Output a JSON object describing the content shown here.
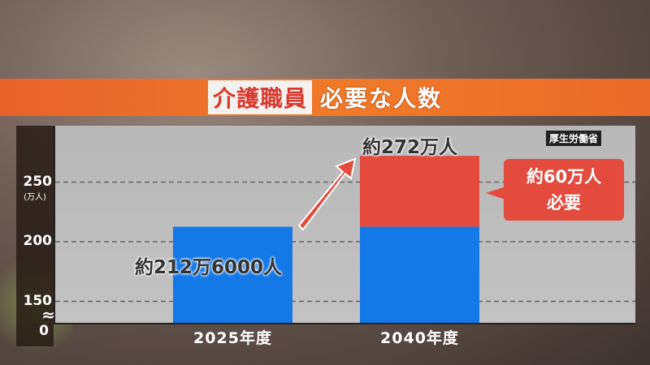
{
  "title": {
    "highlight": "介護職員",
    "rest": "必要な人数"
  },
  "source": "厚生労働省",
  "chart_data": {
    "type": "bar",
    "stacked": true,
    "categories": [
      "2025年度",
      "2040年度"
    ],
    "series": [
      {
        "values": [
          212.6,
          212.6
        ],
        "color": "#1479e6"
      },
      {
        "values": [
          0,
          59.4
        ],
        "color": "#e24b3e"
      }
    ],
    "ylabel": "(万人)",
    "yticks": [
      "0",
      "150",
      "200",
      "250"
    ],
    "ylim": [
      0,
      272
    ],
    "axis_break": true,
    "grid": "dashed horizontal",
    "data_labels": [
      "約212万6000人",
      "約272万人"
    ],
    "annotation": {
      "line1": "約60万人",
      "line2": "必要"
    }
  }
}
